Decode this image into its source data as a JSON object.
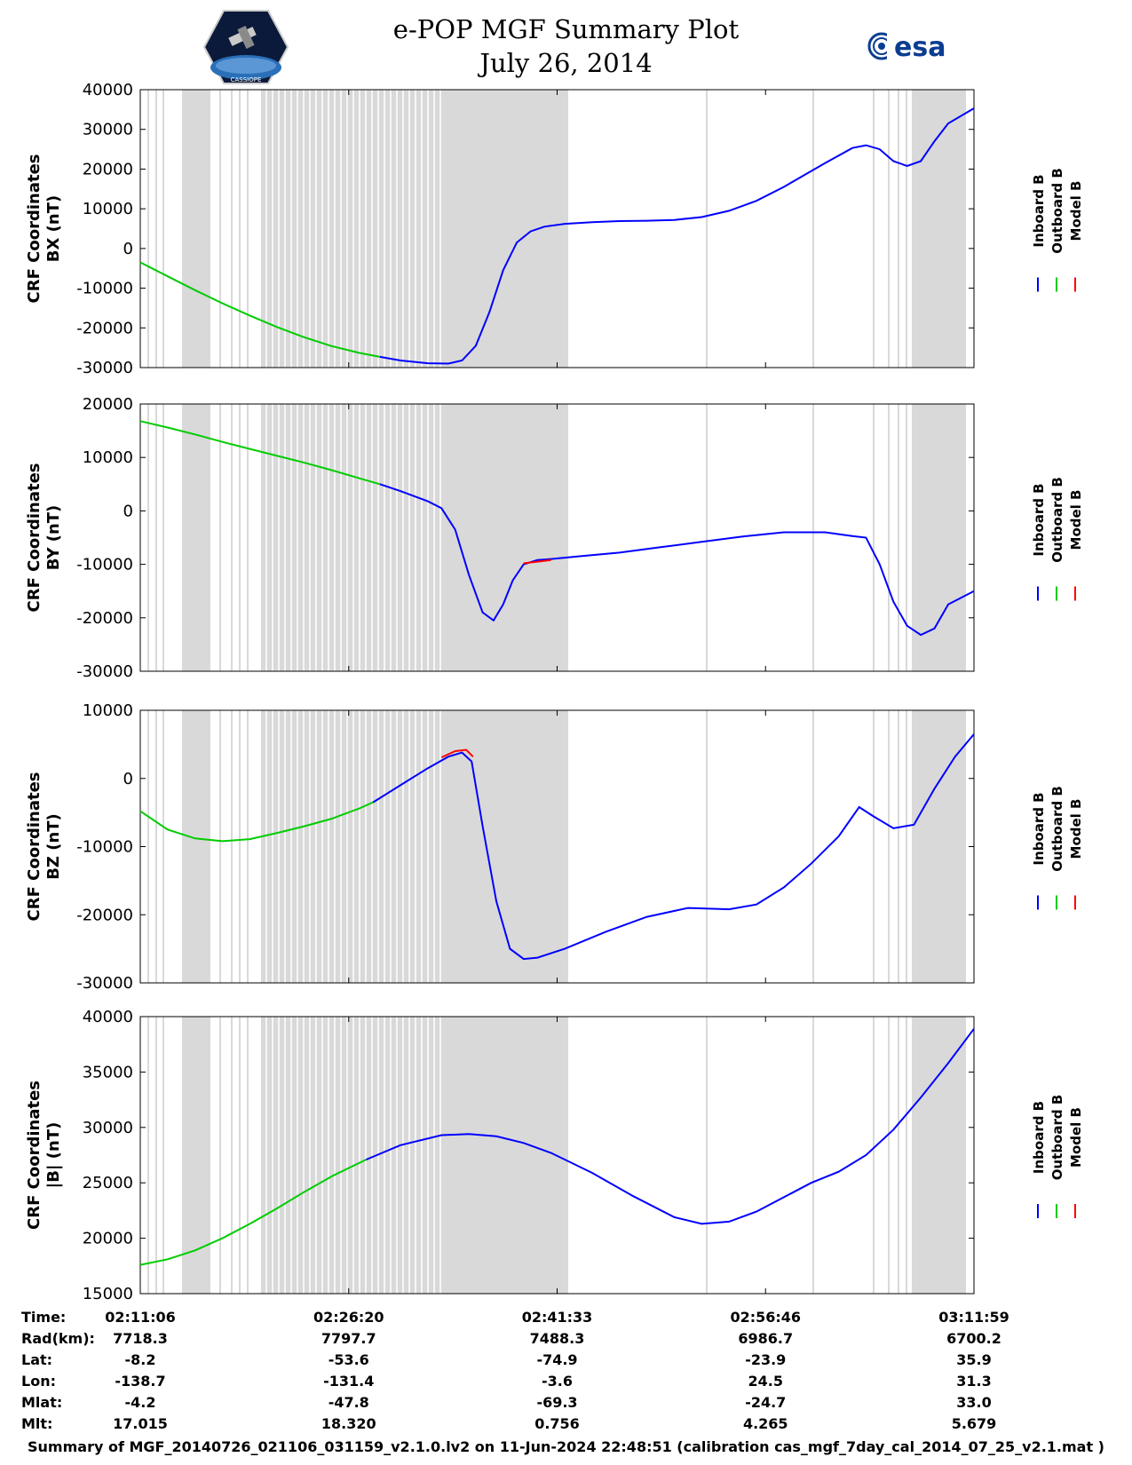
{
  "header": {
    "title": "e-POP MGF Summary Plot",
    "date": "July 26, 2014",
    "esa_logo_text": "esa",
    "cassiope_logo_text": "CASSIOPE"
  },
  "colors": {
    "inboard": "#0000ff",
    "outboard": "#00cc00",
    "model": "#ff0000",
    "shade": "#d9d9d9"
  },
  "chart_data": [
    {
      "type": "line",
      "ylabel_line1": "CRF Coordinates",
      "ylabel_line2": "BX (nT)",
      "ylim": [
        -30000,
        40000
      ],
      "yticks": [
        40000,
        30000,
        20000,
        10000,
        0,
        -10000,
        -20000,
        -30000
      ],
      "xlim_minutes": [
        0,
        60.883
      ],
      "legend": [
        "Inboard B",
        "Outboard B",
        "Model B"
      ],
      "series": [
        {
          "name": "Outboard B",
          "x": [
            0,
            2,
            4,
            6,
            8,
            10,
            12,
            14,
            16,
            17.5
          ],
          "y": [
            -3500,
            -7000,
            -10500,
            -13800,
            -16900,
            -19800,
            -22400,
            -24600,
            -26300,
            -27300
          ]
        },
        {
          "name": "Inboard B",
          "x": [
            17.5,
            19,
            21,
            22.5,
            23.5,
            24.5,
            25.5,
            26.5,
            27.5,
            28.5,
            29.5,
            31,
            33,
            35,
            37,
            39,
            41,
            43,
            45,
            47,
            48.5,
            50,
            52,
            53,
            54,
            55,
            56,
            57,
            58,
            59,
            60.883
          ],
          "y": [
            -27300,
            -28200,
            -28900,
            -29000,
            -28200,
            -24500,
            -16000,
            -5500,
            1500,
            4300,
            5500,
            6200,
            6600,
            6900,
            7000,
            7200,
            7900,
            9500,
            12000,
            15500,
            18500,
            21500,
            25300,
            26000,
            25000,
            22000,
            20800,
            22000,
            27000,
            31500,
            35300
          ]
        }
      ]
    },
    {
      "type": "line",
      "ylabel_line1": "CRF Coordinates",
      "ylabel_line2": "BY (nT)",
      "ylim": [
        -30000,
        20000
      ],
      "yticks": [
        20000,
        10000,
        0,
        -10000,
        -20000,
        -30000
      ],
      "xlim_minutes": [
        0,
        60.883
      ],
      "legend": [
        "Inboard B",
        "Outboard B",
        "Model B"
      ],
      "series": [
        {
          "name": "Outboard B",
          "x": [
            0,
            2,
            4,
            6,
            8,
            10,
            12,
            14,
            16,
            17.5
          ],
          "y": [
            16800,
            15600,
            14300,
            12900,
            11600,
            10300,
            9000,
            7600,
            6100,
            5000
          ]
        },
        {
          "name": "Inboard B",
          "x": [
            17.5,
            19,
            21,
            22,
            23,
            24,
            25,
            25.8,
            26.5,
            27.2,
            28,
            29,
            30,
            32,
            35,
            38,
            41,
            44,
            47,
            50,
            52,
            53,
            54,
            55,
            56,
            57,
            58,
            59,
            60.883
          ],
          "y": [
            5000,
            3700,
            1800,
            500,
            -3500,
            -12000,
            -19000,
            -20500,
            -17500,
            -13000,
            -10000,
            -9200,
            -9000,
            -8500,
            -7800,
            -6800,
            -5800,
            -4800,
            -4000,
            -4000,
            -4700,
            -5000,
            -10000,
            -17000,
            -21500,
            -23200,
            -22000,
            -17500,
            -15000
          ]
        },
        {
          "name": "Model B",
          "x": [
            28,
            29,
            30
          ],
          "y": [
            -9800,
            -9500,
            -9200
          ]
        }
      ]
    },
    {
      "type": "line",
      "ylabel_line1": "CRF Coordinates",
      "ylabel_line2": "BZ (nT)",
      "ylim": [
        -30000,
        10000
      ],
      "yticks": [
        10000,
        0,
        -10000,
        -20000,
        -30000
      ],
      "xlim_minutes": [
        0,
        60.883
      ],
      "legend": [
        "Inboard B",
        "Outboard B",
        "Model B"
      ],
      "series": [
        {
          "name": "Outboard B",
          "x": [
            0,
            2,
            4,
            6,
            8,
            10,
            12,
            14,
            16,
            17
          ],
          "y": [
            -4800,
            -7500,
            -8800,
            -9200,
            -8900,
            -8000,
            -7000,
            -5900,
            -4400,
            -3500
          ]
        },
        {
          "name": "Inboard B",
          "x": [
            17,
            19,
            21,
            22.5,
            23.5,
            24.2,
            25,
            26,
            27,
            28,
            29,
            31,
            34,
            37,
            40,
            43,
            45,
            47,
            49,
            51,
            52.5,
            53.5,
            55,
            56.5,
            58,
            59.5,
            60.883
          ],
          "y": [
            -3500,
            -1000,
            1500,
            3200,
            3800,
            2500,
            -7000,
            -18000,
            -25000,
            -26500,
            -26300,
            -25000,
            -22500,
            -20300,
            -19000,
            -19200,
            -18500,
            -16000,
            -12500,
            -8500,
            -4200,
            -5500,
            -7300,
            -6800,
            -1500,
            3200,
            6500
          ]
        },
        {
          "name": "Model B",
          "x": [
            22,
            23,
            23.8,
            24.3
          ],
          "y": [
            3100,
            4000,
            4200,
            3200
          ]
        }
      ]
    },
    {
      "type": "line",
      "ylabel_line1": "CRF Coordinates",
      "ylabel_line2": "|B| (nT)",
      "ylim": [
        15000,
        40000
      ],
      "yticks": [
        40000,
        35000,
        30000,
        25000,
        20000,
        15000
      ],
      "xlim_minutes": [
        0,
        60.883
      ],
      "legend": [
        "Inboard B",
        "Outboard B",
        "Model B"
      ],
      "series": [
        {
          "name": "Outboard B",
          "x": [
            0,
            2,
            4,
            6,
            8,
            10,
            12,
            14,
            16.5
          ],
          "y": [
            17600,
            18100,
            18900,
            20000,
            21300,
            22700,
            24200,
            25600,
            27100
          ]
        },
        {
          "name": "Inboard B",
          "x": [
            16.5,
            19,
            22,
            24,
            26,
            28,
            30,
            33,
            36,
            39,
            41,
            43,
            45,
            47,
            49,
            51,
            53,
            55,
            57,
            59,
            60.883
          ],
          "y": [
            27100,
            28400,
            29300,
            29400,
            29200,
            28600,
            27700,
            25900,
            23800,
            21900,
            21300,
            21500,
            22400,
            23700,
            25000,
            26000,
            27500,
            29800,
            32700,
            35800,
            38900
          ]
        }
      ]
    }
  ],
  "time_table": {
    "labels": [
      "Time:",
      "Rad(km):",
      "Lat:",
      "Lon:",
      "Mlat:",
      "Mlt:"
    ],
    "columns": [
      {
        "time": "02:11:06",
        "rad": "7718.3",
        "lat": "-8.2",
        "lon": "-138.7",
        "mlat": "-4.2",
        "mlt": "17.015"
      },
      {
        "time": "02:26:20",
        "rad": "7797.7",
        "lat": "-53.6",
        "lon": "-131.4",
        "mlat": "-47.8",
        "mlt": "18.320"
      },
      {
        "time": "02:41:33",
        "rad": "7488.3",
        "lat": "-74.9",
        "lon": "-3.6",
        "mlat": "-69.3",
        "mlt": "0.756"
      },
      {
        "time": "02:56:46",
        "rad": "6986.7",
        "lat": "-23.9",
        "lon": "24.5",
        "mlat": "-24.7",
        "mlt": "4.265"
      },
      {
        "time": "03:11:59",
        "rad": "6700.2",
        "lat": "35.9",
        "lon": "31.3",
        "mlat": "33.0",
        "mlt": "5.679"
      }
    ]
  },
  "footer": "Summary of MGF_20140726_021106_031159_v2.1.0.lv2 on 11-Jun-2024 22:48:51 (calibration cas_mgf_7day_cal_2014_07_25_v2.1.mat )"
}
